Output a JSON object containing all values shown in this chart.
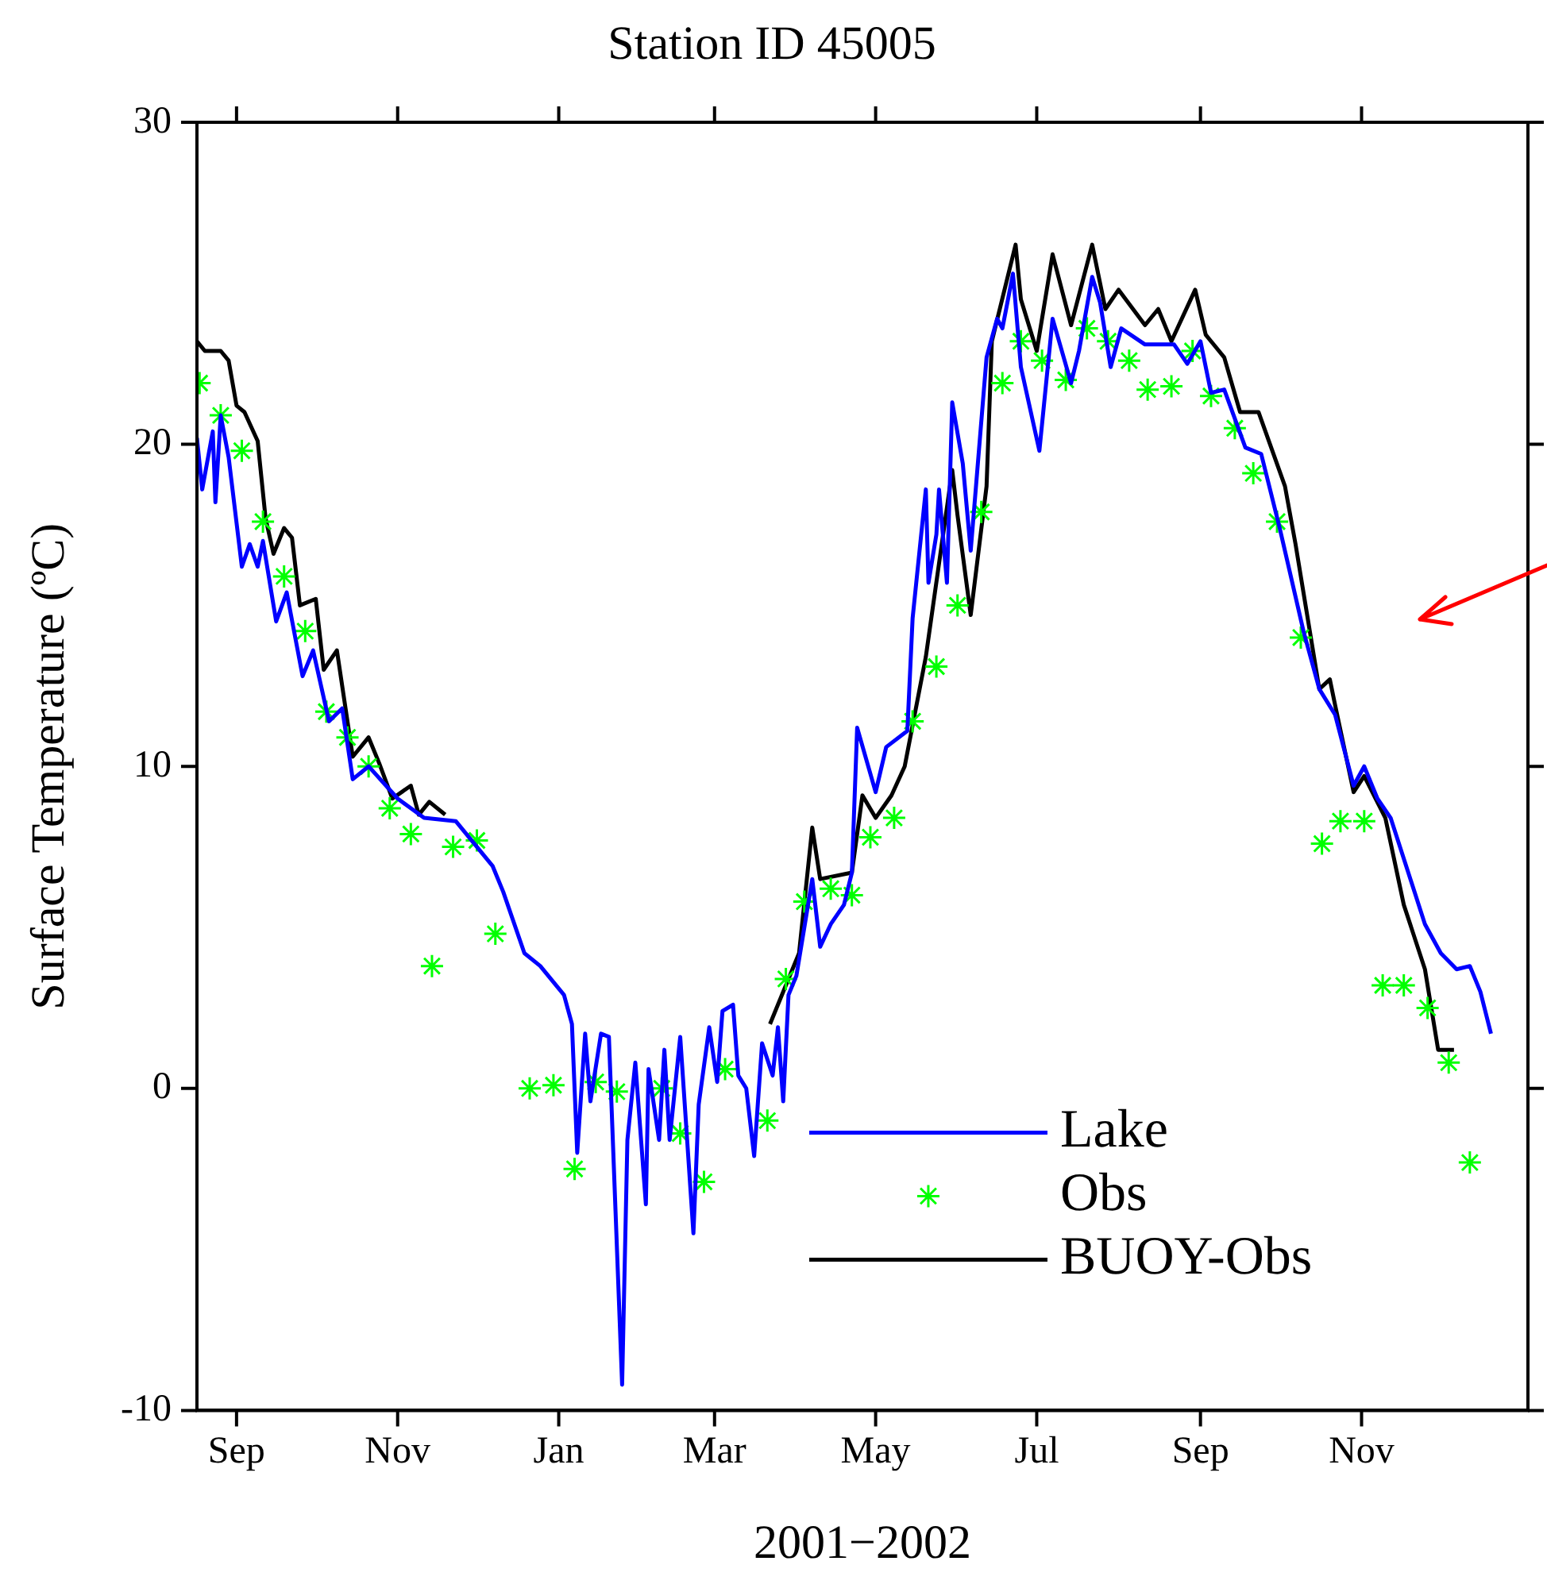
{
  "chart_data": {
    "type": "line",
    "title": "Station ID 45005",
    "xlabel": "2001−2002",
    "ylabel": "Surface Temperature (ºC)",
    "xlim": [
      "2001-08-17",
      "2003-01-03"
    ],
    "ylim": [
      -10,
      30
    ],
    "yticks": [
      -10,
      0,
      10,
      20,
      30
    ],
    "xticks": [
      {
        "value": "2001-09-01",
        "label": "Sep"
      },
      {
        "value": "2001-11-01",
        "label": "Nov"
      },
      {
        "value": "2002-01-01",
        "label": "Jan"
      },
      {
        "value": "2002-03-01",
        "label": "Mar"
      },
      {
        "value": "2002-05-01",
        "label": "May"
      },
      {
        "value": "2002-07-01",
        "label": "Jul"
      },
      {
        "value": "2002-09-01",
        "label": "Sep"
      },
      {
        "value": "2002-11-01",
        "label": "Nov"
      }
    ],
    "grid": false,
    "legend": "bottom right",
    "line_style": "solid",
    "series": [
      {
        "name": "Lake",
        "type": "line",
        "color": "#0000ff",
        "x": [
          "2001-08-17",
          "2001-08-19",
          "2001-08-23",
          "2001-08-24",
          "2001-08-26",
          "2001-08-29",
          "2001-09-03",
          "2001-09-06",
          "2001-09-09",
          "2001-09-11",
          "2001-09-16",
          "2001-09-20",
          "2001-09-26",
          "2001-09-30",
          "2001-10-06",
          "2001-10-11",
          "2001-10-15",
          "2001-10-21",
          "2001-11-01",
          "2001-11-11",
          "2001-11-23",
          "2001-12-07",
          "2001-12-11",
          "2001-12-19",
          "2001-12-25",
          "2002-01-03",
          "2002-01-06",
          "2002-01-08",
          "2002-01-11",
          "2002-01-13",
          "2002-01-17",
          "2002-01-20",
          "2002-01-25",
          "2002-01-27",
          "2002-01-30",
          "2002-02-03",
          "2002-02-04",
          "2002-02-08",
          "2002-02-10",
          "2002-02-12",
          "2002-02-16",
          "2002-02-21",
          "2002-02-23",
          "2002-02-27",
          "2002-03-02",
          "2002-03-04",
          "2002-03-08",
          "2002-03-10",
          "2002-03-13",
          "2002-03-16",
          "2002-03-19",
          "2002-03-23",
          "2002-03-25",
          "2002-03-27",
          "2002-03-29",
          "2002-04-01",
          "2002-04-07",
          "2002-04-10",
          "2002-04-14",
          "2002-04-19",
          "2002-04-22",
          "2002-04-24",
          "2002-05-01",
          "2002-05-05",
          "2002-05-13",
          "2002-05-15",
          "2002-05-20",
          "2002-05-21",
          "2002-05-24",
          "2002-05-25",
          "2002-05-28",
          "2002-05-30",
          "2002-06-03",
          "2002-06-06",
          "2002-06-12",
          "2002-06-16",
          "2002-06-18",
          "2002-06-22",
          "2002-06-25",
          "2002-07-02",
          "2002-07-07",
          "2002-07-14",
          "2002-07-17",
          "2002-07-22",
          "2002-07-25",
          "2002-07-29",
          "2002-08-02",
          "2002-08-11",
          "2002-08-22",
          "2002-08-27",
          "2002-09-01",
          "2002-09-05",
          "2002-09-10",
          "2002-09-18",
          "2002-09-24",
          "2002-10-01",
          "2002-10-10",
          "2002-10-16",
          "2002-10-22",
          "2002-10-29",
          "2002-11-02",
          "2002-11-07",
          "2002-11-12",
          "2002-11-25",
          "2002-12-01",
          "2002-12-07",
          "2002-12-12",
          "2002-12-16",
          "2002-12-20"
        ],
        "values": [
          20.2,
          18.6,
          20.4,
          18.2,
          20.9,
          19.6,
          16.2,
          16.9,
          16.2,
          17.0,
          14.5,
          15.4,
          12.8,
          13.6,
          11.4,
          11.8,
          9.6,
          10.0,
          9.0,
          8.4,
          8.3,
          6.9,
          6.1,
          4.2,
          3.8,
          2.9,
          2.0,
          -2.0,
          1.7,
          -0.4,
          1.7,
          1.6,
          -9.2,
          -1.6,
          0.8,
          -3.6,
          0.6,
          -1.6,
          1.2,
          -1.6,
          1.6,
          -4.5,
          -0.5,
          1.9,
          0.2,
          2.4,
          2.6,
          0.4,
          0.0,
          -2.1,
          1.4,
          0.4,
          1.9,
          -0.4,
          2.9,
          3.5,
          6.5,
          4.4,
          5.1,
          5.7,
          6.7,
          11.2,
          9.2,
          10.6,
          11.1,
          14.6,
          18.6,
          15.7,
          17.2,
          18.6,
          15.7,
          21.3,
          19.4,
          16.7,
          22.7,
          23.9,
          23.6,
          25.3,
          22.4,
          19.8,
          23.9,
          21.9,
          22.9,
          25.2,
          24.4,
          22.4,
          23.6,
          23.1,
          23.1,
          22.5,
          23.2,
          21.6,
          21.7,
          19.9,
          19.7,
          17.4,
          14.2,
          12.4,
          11.6,
          9.4,
          10.0,
          9.0,
          8.4,
          5.1,
          4.2,
          3.7,
          3.8,
          3.0,
          1.7
        ]
      },
      {
        "name": "Obs",
        "type": "scatter",
        "marker": "cross",
        "color": "#00ff00",
        "x": [
          "2001-08-18",
          "2001-08-26",
          "2001-09-03",
          "2001-09-11",
          "2001-09-19",
          "2001-09-27",
          "2001-10-05",
          "2001-10-13",
          "2001-10-21",
          "2001-10-29",
          "2001-11-06",
          "2001-11-14",
          "2001-11-22",
          "2001-12-01",
          "2001-12-08",
          "2001-12-21",
          "2001-12-30",
          "2002-01-07",
          "2002-01-15",
          "2002-01-23",
          "2002-02-09",
          "2002-02-16",
          "2002-02-25",
          "2002-03-05",
          "2002-03-21",
          "2002-03-28",
          "2002-04-04",
          "2002-04-14",
          "2002-04-22",
          "2002-04-29",
          "2002-05-08",
          "2002-05-15",
          "2002-05-24",
          "2002-06-01",
          "2002-06-10",
          "2002-06-18",
          "2002-06-25",
          "2002-07-03",
          "2002-07-12",
          "2002-07-20",
          "2002-07-28",
          "2002-08-05",
          "2002-08-12",
          "2002-08-21",
          "2002-08-29",
          "2002-09-05",
          "2002-09-14",
          "2002-09-21",
          "2002-09-30",
          "2002-10-09",
          "2002-10-17",
          "2002-10-24",
          "2002-11-02",
          "2002-11-09",
          "2002-11-17",
          "2002-11-26",
          "2002-12-04",
          "2002-12-12"
        ],
        "values": [
          21.9,
          20.9,
          19.8,
          17.6,
          15.9,
          14.2,
          11.7,
          10.9,
          10.0,
          8.7,
          7.9,
          3.8,
          7.5,
          7.7,
          4.8,
          0.0,
          0.1,
          -2.5,
          0.2,
          -0.1,
          0.0,
          -1.4,
          -2.9,
          0.6,
          -1.0,
          3.4,
          5.8,
          6.2,
          6.0,
          7.8,
          8.4,
          11.4,
          13.1,
          15.0,
          17.9,
          21.9,
          23.2,
          22.6,
          22.0,
          23.6,
          23.2,
          22.6,
          21.7,
          21.8,
          22.9,
          21.5,
          20.5,
          19.1,
          17.6,
          14.0,
          7.6,
          8.3,
          8.3,
          3.2,
          3.2,
          2.5,
          0.8,
          -2.3
        ]
      },
      {
        "name": "BUOY-Obs",
        "type": "line",
        "color": "#000000",
        "x": [
          "2001-08-17",
          "2001-08-20",
          "2001-08-26",
          "2001-08-29",
          "2001-09-01",
          "2001-09-04",
          "2001-09-09",
          "2001-09-12",
          "2001-09-15",
          "2001-09-19",
          "2001-09-22",
          "2001-09-25",
          "2001-10-01",
          "2001-10-04",
          "2001-10-09",
          "2001-10-15",
          "2001-10-21",
          "2001-10-25",
          "2001-10-30",
          "2001-11-06",
          "2001-11-09",
          "2001-11-13",
          "2001-11-19",
          "2002-01-01",
          "2002-03-22",
          "2002-04-02",
          "2002-04-07",
          "2002-04-10",
          "2002-04-22",
          "2002-04-26",
          "2002-05-01",
          "2002-05-07",
          "2002-05-12",
          "2002-05-20",
          "2002-05-30",
          "2002-06-01",
          "2002-06-06",
          "2002-06-12",
          "2002-06-14",
          "2002-06-23",
          "2002-06-25",
          "2002-07-01",
          "2002-07-07",
          "2002-07-14",
          "2002-07-22",
          "2002-07-27",
          "2002-08-01",
          "2002-08-11",
          "2002-08-16",
          "2002-08-21",
          "2002-08-30",
          "2002-09-03",
          "2002-09-10",
          "2002-09-16",
          "2002-09-23",
          "2002-10-03",
          "2002-10-07",
          "2002-10-16",
          "2002-10-20",
          "2002-10-22",
          "2002-10-29",
          "2002-11-02",
          "2002-11-10",
          "2002-11-17",
          "2002-11-25",
          "2002-11-30",
          "2002-12-06"
        ],
        "values": [
          23.2,
          22.9,
          22.9,
          22.6,
          21.2,
          21.0,
          20.1,
          17.7,
          16.6,
          17.4,
          17.1,
          15.0,
          15.2,
          13.0,
          13.6,
          10.3,
          10.9,
          10.1,
          9.0,
          9.4,
          8.5,
          8.9,
          8.5,
          null,
          2.0,
          4.2,
          8.1,
          6.5,
          6.7,
          9.1,
          8.4,
          9.1,
          10.0,
          13.4,
          19.2,
          17.8,
          14.7,
          18.7,
          23.2,
          26.2,
          24.5,
          22.9,
          25.9,
          23.7,
          26.2,
          24.2,
          24.8,
          23.7,
          24.2,
          23.2,
          24.8,
          23.4,
          22.7,
          21.0,
          21.0,
          18.7,
          16.9,
          12.4,
          12.7,
          11.9,
          9.2,
          9.7,
          8.4,
          5.7,
          3.7,
          1.2,
          1.2
        ]
      }
    ]
  }
}
